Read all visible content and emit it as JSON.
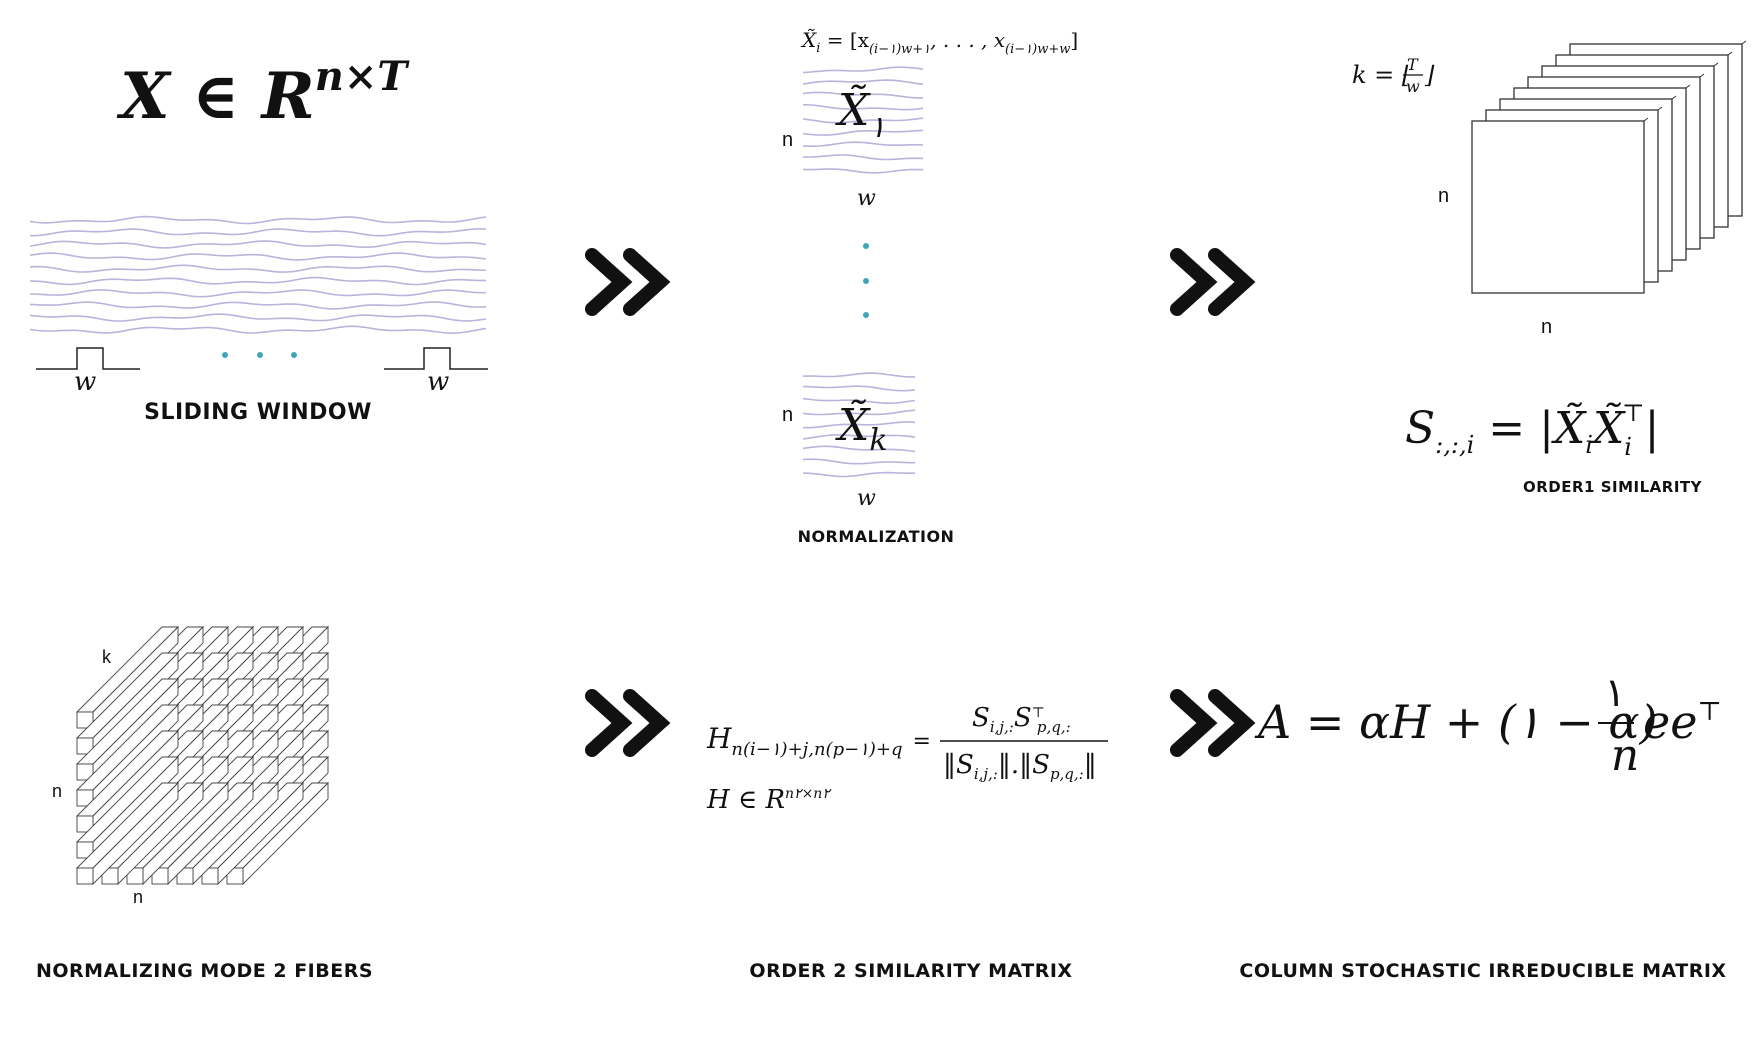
{
  "colors": {
    "wave": "#b8b4dc",
    "dot": "#3ea6b8",
    "ink": "#111111"
  },
  "panel1": {
    "formula": {
      "base": "X ∈ R",
      "sup": "n×T"
    },
    "window_label_left": "w",
    "window_label_right": "w",
    "caption": "SLIDING WINDOW"
  },
  "panel2": {
    "formula": {
      "lhs": "X̃",
      "sub": "i",
      "rhs": " = [x",
      "s1": "(i−۱)w+۱",
      "mid": ", . . . , x",
      "s2": "(i−۱)w+w",
      "end": "]"
    },
    "block1": {
      "side": "n",
      "bottom": "w",
      "symbol": "X̃",
      "index": "۱"
    },
    "block2": {
      "side": "n",
      "bottom": "w",
      "symbol": "X̃",
      "index": "k"
    },
    "caption": "NORMALIZATION"
  },
  "panel3": {
    "k_formula": {
      "lhs": "k = ⌊",
      "num": "T",
      "den": "w",
      "rhs": "⌋"
    },
    "side_label": "n",
    "bottom_label": "n",
    "sim_formula": {
      "lhs": "S",
      "sub": ":,:,i",
      "eq": "= |X̃",
      "sub2": "i",
      "mid": "X̃",
      "sub3": "i",
      "sup": "⊤",
      "end": "|"
    },
    "caption": "ORDER1 SIMILARITY"
  },
  "panel4": {
    "depth_label": "k",
    "side_label": "n",
    "bottom_label": "n",
    "caption": "NORMALIZING MODE 2 FIBERS"
  },
  "panel5": {
    "h_lhs": "H",
    "h_sub": "n(i−۱)+j,n(p−۱)+q",
    "eq": "=",
    "num": "S",
    "num_sub1": "i,j,:",
    "num2": "S",
    "num_sup": "⊤",
    "num_sub2": "p,q,:",
    "den": "‖S",
    "den_sub1": "i,j,:",
    "den_mid": "‖.‖S",
    "den_sub2": "p,q,:",
    "den_end": "‖",
    "h_space": "H ∈ R",
    "h_space_sup": "n۲×n۲",
    "caption": "ORDER 2 SIMILARITY MATRIX"
  },
  "panel6": {
    "formula_a": "A = αH + (۱ − α)",
    "frac_num": "۱",
    "frac_den": "n",
    "formula_b": "ee",
    "formula_sup": "⊤",
    "caption": "COLUMN STOCHASTIC IRREDUCIBLE MATRIX"
  },
  "arrow_icon": "double-chevron-right-icon"
}
